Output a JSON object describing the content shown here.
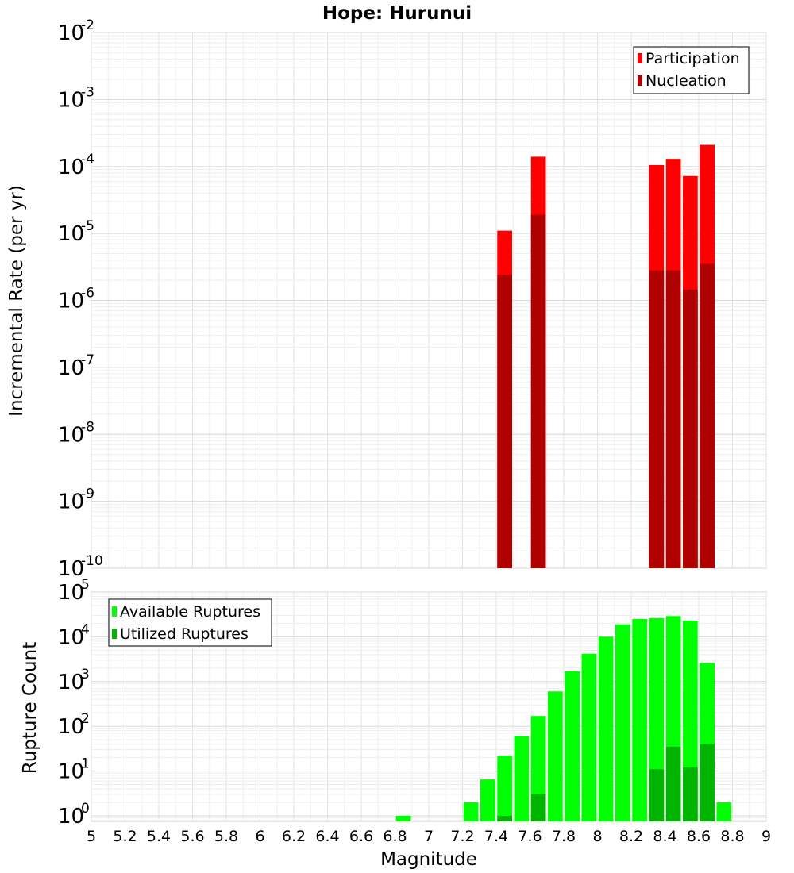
{
  "chart_data": [
    {
      "type": "bar",
      "title": "Hope: Hurunui",
      "xlabel": "",
      "ylabel": "Incremental Rate (per yr)",
      "xlim": [
        5,
        9
      ],
      "ylim": [
        1e-10,
        0.01
      ],
      "yscale": "log",
      "y_ticks": [
        {
          "base": "10",
          "exp": "-2"
        },
        {
          "base": "10",
          "exp": "-3"
        },
        {
          "base": "10",
          "exp": "-4"
        },
        {
          "base": "10",
          "exp": "-5"
        },
        {
          "base": "10",
          "exp": "-6"
        },
        {
          "base": "10",
          "exp": "-7"
        },
        {
          "base": "10",
          "exp": "-8"
        },
        {
          "base": "10",
          "exp": "-9"
        },
        {
          "base": "10",
          "exp": "-10"
        }
      ],
      "grid": true,
      "legend_position": "top-right",
      "series": [
        {
          "name": "Participation",
          "color": "#ff0000",
          "x": [
            7.45,
            7.65,
            8.35,
            8.45,
            8.55,
            8.65
          ],
          "values": [
            1.1e-05,
            0.00014,
            0.000105,
            0.00013,
            7.2e-05,
            0.00021
          ]
        },
        {
          "name": "Nucleation",
          "color": "#b00000",
          "x": [
            7.45,
            7.65,
            8.35,
            8.45,
            8.55,
            8.65
          ],
          "values": [
            2.4e-06,
            1.9e-05,
            2.8e-06,
            2.8e-06,
            1.45e-06,
            3.5e-06
          ]
        }
      ]
    },
    {
      "type": "bar",
      "title": "",
      "xlabel": "Magnitude",
      "ylabel": "Rupture Count",
      "xlim": [
        5,
        9
      ],
      "ylim": [
        0.75,
        100000.0
      ],
      "yscale": "log",
      "y_ticks": [
        {
          "base": "10",
          "exp": "5"
        },
        {
          "base": "10",
          "exp": "4"
        },
        {
          "base": "10",
          "exp": "3"
        },
        {
          "base": "10",
          "exp": "2"
        },
        {
          "base": "10",
          "exp": "1"
        },
        {
          "base": "10",
          "exp": "0"
        }
      ],
      "x_ticks": [
        "5",
        "5.2",
        "5.4",
        "5.6",
        "5.8",
        "6",
        "6.2",
        "6.4",
        "6.6",
        "6.8",
        "7",
        "7.2",
        "7.4",
        "7.6",
        "7.8",
        "8",
        "8.2",
        "8.4",
        "8.6",
        "8.8",
        "9"
      ],
      "grid": true,
      "legend_position": "top-left",
      "series": [
        {
          "name": "Available Ruptures",
          "color": "#00ff00",
          "x": [
            6.85,
            7.25,
            7.35,
            7.45,
            7.55,
            7.65,
            7.75,
            7.85,
            7.95,
            8.05,
            8.15,
            8.25,
            8.35,
            8.45,
            8.55,
            8.65,
            8.75
          ],
          "values": [
            1,
            2,
            6.5,
            22,
            60,
            170,
            600,
            1700,
            4200,
            10000,
            19000,
            25000,
            26000,
            29000,
            23000,
            2600,
            2
          ]
        },
        {
          "name": "Utilized Ruptures",
          "color": "#00b400",
          "x": [
            7.45,
            7.65,
            8.35,
            8.45,
            8.55,
            8.65
          ],
          "values": [
            1,
            3,
            11,
            35,
            12,
            40
          ]
        }
      ]
    }
  ]
}
